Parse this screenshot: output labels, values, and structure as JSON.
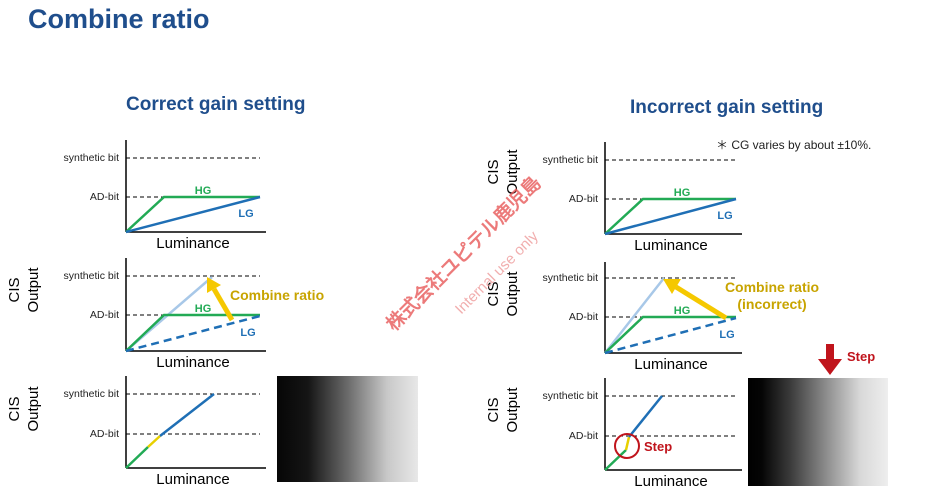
{
  "title": "Combine ratio",
  "left": {
    "heading": "Correct gain setting",
    "annotation": "Combine ratio"
  },
  "right": {
    "heading": "Incorrect gain setting",
    "note": "＊ CG varies by about ±10%.",
    "annotation_line1": "Combine ratio",
    "annotation_line2": "(incorrect)",
    "step_label": "Step",
    "step_arrow_label": "Step"
  },
  "labels": {
    "synthetic_bit": "synthetic bit",
    "ad_bit": "AD-bit",
    "hg": "HG",
    "lg": "LG",
    "luminance": "Luminance",
    "cis": "CIS",
    "output": "Output"
  },
  "watermark": {
    "line1": "株式会社ユピテル鹿児島",
    "line2": "Internal use only"
  },
  "colors": {
    "title": "#1f4e8c",
    "hg": "#22aa55",
    "lg": "#1f6fb5",
    "light_blue": "#a8c8e8",
    "annotation": "#c8a400",
    "arrow": "#f5c800",
    "step": "#c0141c",
    "watermark": "#e85a5a"
  }
}
